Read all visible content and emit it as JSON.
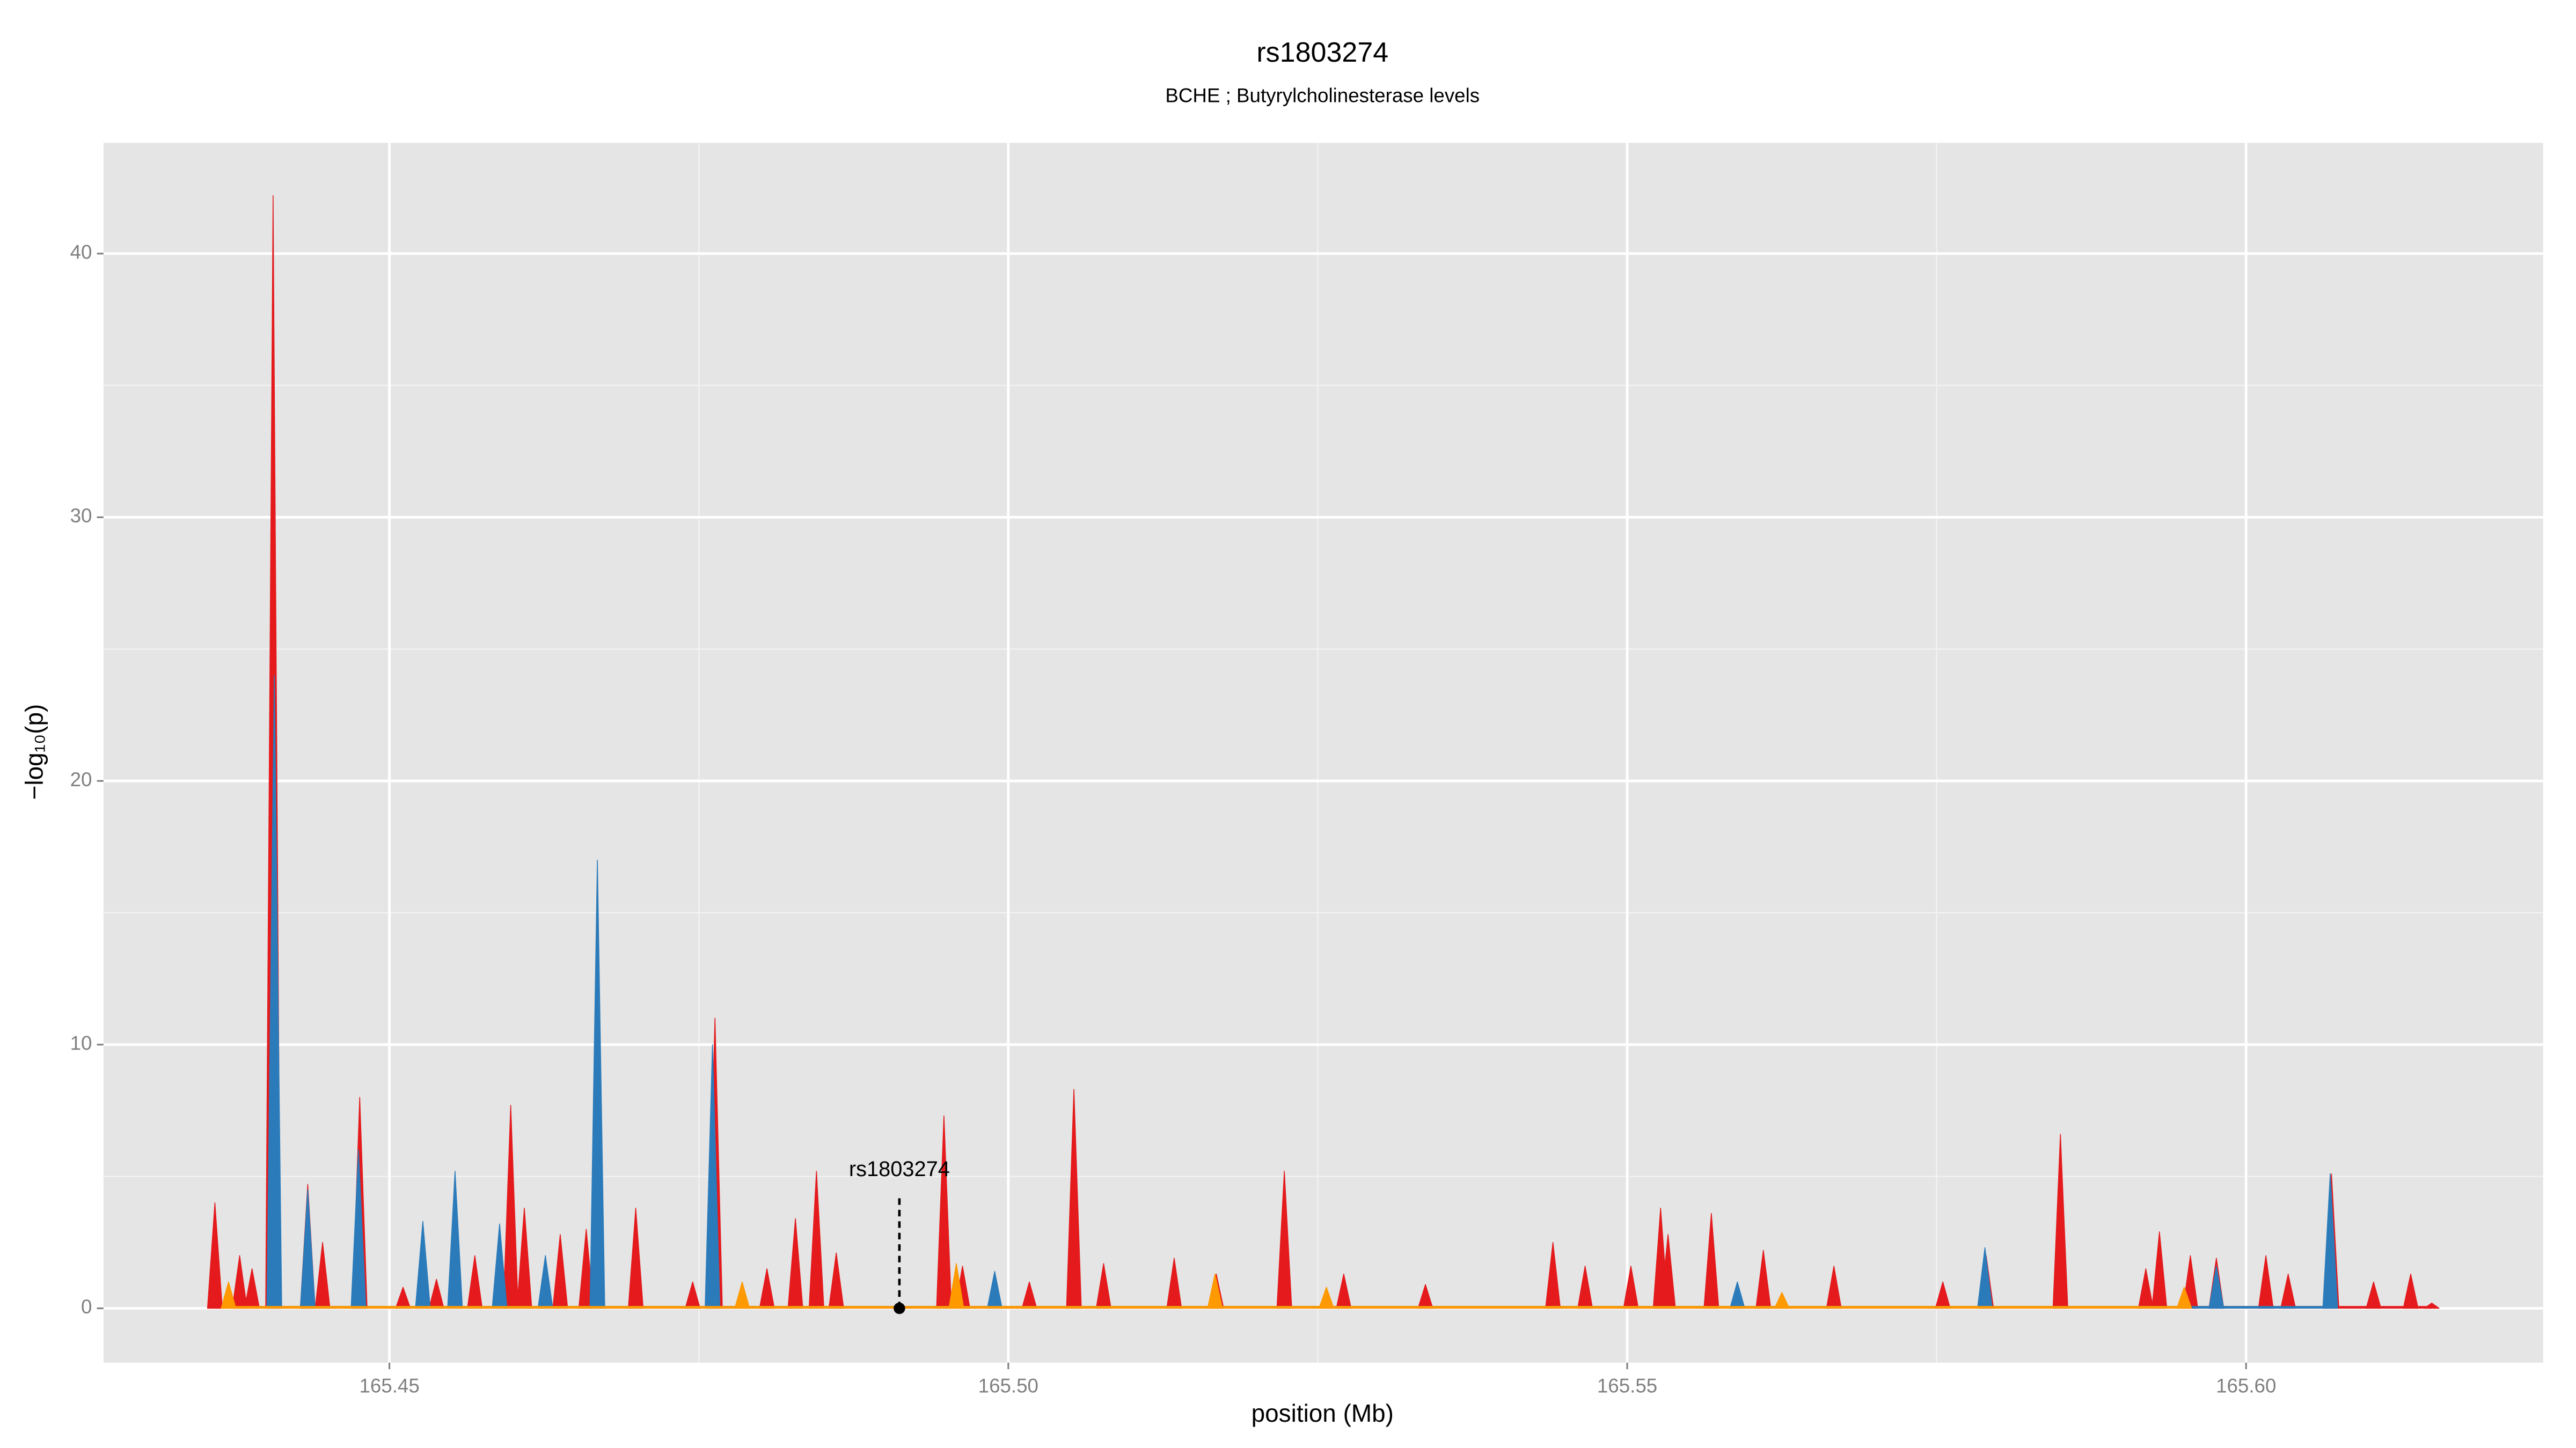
{
  "chart_data": {
    "type": "area",
    "title": "rs1803274",
    "subtitle": "BCHE ; Butyrylcholinesterase levels",
    "xlabel": "position (Mb)",
    "ylabel": "−log₁₀(p)",
    "xlim": [
      165.4269,
      165.624
    ],
    "ylim": [
      -2.06,
      44.2
    ],
    "xticks": [
      165.45,
      {
        "value": 165.5,
        "label": "165.50"
      },
      165.55,
      {
        "value": 165.6,
        "label": "165.60"
      }
    ],
    "yticks": [
      0,
      10,
      20,
      30,
      40
    ],
    "xminor": [
      165.475,
      165.525,
      165.575
    ],
    "yminor": [
      5,
      15,
      25,
      35
    ],
    "grid": true,
    "series": [
      {
        "color": "#e41a1c",
        "x": [
          165.4359,
          165.4379,
          165.4389,
          165.4406,
          165.4434,
          165.4446,
          165.4476,
          165.4511,
          165.4538,
          165.4569,
          165.4598,
          165.4609,
          165.4638,
          165.4659,
          165.4699,
          165.4745,
          165.4763,
          165.4805,
          165.4828,
          165.4845,
          165.4861,
          165.4948,
          165.4963,
          165.5017,
          165.5053,
          165.5077,
          165.5134,
          165.5168,
          165.5223,
          165.5271,
          165.5337,
          165.544,
          165.5466,
          165.5503,
          165.5527,
          165.5533,
          165.5568,
          165.561,
          165.5667,
          165.5755,
          165.579,
          165.585,
          165.5919,
          165.593,
          165.5955,
          165.5976,
          165.6016,
          165.6034,
          165.6069,
          165.6103,
          165.6133,
          165.615
        ],
        "values": [
          4,
          2,
          1.5,
          42.2,
          4.7,
          2.5,
          8,
          0.8,
          1.1,
          2,
          7.7,
          3.8,
          2.8,
          3,
          3.8,
          1,
          11,
          1.5,
          3.4,
          5.2,
          2.1,
          7.3,
          1.6,
          1,
          8.3,
          1.7,
          1.9,
          1.3,
          5.2,
          1.3,
          0.9,
          2.5,
          1.6,
          1.6,
          3.8,
          2.8,
          3.6,
          2.2,
          1.6,
          1,
          2,
          6.6,
          1.5,
          2.9,
          2,
          1.9,
          2,
          1.3,
          5.1,
          1,
          1.3,
          0.2
        ]
      },
      {
        "color": "#2b7bba",
        "x": [
          165.4407,
          165.4434,
          165.4475,
          165.4527,
          165.4553,
          165.4589,
          165.4626,
          165.4668,
          165.4761,
          165.4989,
          165.5589,
          165.5789,
          165.5976,
          165.6068
        ],
        "values": [
          24,
          4.5,
          6,
          3.3,
          5.2,
          3.2,
          2,
          17,
          10,
          1.4,
          1,
          2.3,
          1.6,
          5.1
        ]
      },
      {
        "color": "#ff9900",
        "x": [
          165.437,
          165.4785,
          165.4958,
          165.5167,
          165.5257,
          165.5625,
          165.595
        ],
        "values": [
          1,
          1,
          1.7,
          1.3,
          0.8,
          0.6,
          0.8
        ]
      }
    ],
    "annotation": {
      "text": "rs1803274",
      "x": 165.4912,
      "y": 0
    }
  }
}
